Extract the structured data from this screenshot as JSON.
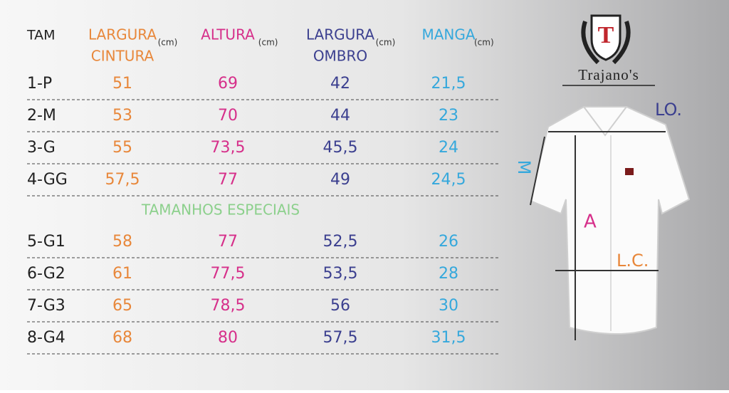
{
  "table": {
    "headers": [
      {
        "lines": [
          "TAM"
        ]
      },
      {
        "lines": [
          "LARGURA",
          "CINTURA"
        ],
        "unit": "(cm)"
      },
      {
        "lines": [
          "ALTURA"
        ],
        "unit": "(cm)"
      },
      {
        "lines": [
          "LARGURA",
          "OMBRO"
        ],
        "unit": "(cm)"
      },
      {
        "lines": [
          "MANGA"
        ],
        "unit": "(cm)"
      }
    ],
    "rows": [
      [
        "1-P",
        "51",
        "69",
        "42",
        "21,5"
      ],
      [
        "2-M",
        "53",
        "70",
        "44",
        "23"
      ],
      [
        "3-G",
        "55",
        "73,5",
        "45,5",
        "24"
      ],
      [
        "4-GG",
        "57,5",
        "77",
        "49",
        "24,5"
      ]
    ],
    "section_label": "TAMANHOS ESPECIAIS",
    "special_rows": [
      [
        "5-G1",
        "58",
        "77",
        "52,5",
        "26"
      ],
      [
        "6-G2",
        "61",
        "77,5",
        "53,5",
        "28"
      ],
      [
        "7-G3",
        "65",
        "78,5",
        "56",
        "30"
      ],
      [
        "8-G4",
        "68",
        "80",
        "57,5",
        "31,5"
      ]
    ]
  },
  "brand": {
    "monogram": "T",
    "name": "Trajano's"
  },
  "diagram": {
    "shoulder": "LO.",
    "sleeve": "M",
    "height": "A",
    "waist": "L.C."
  }
}
